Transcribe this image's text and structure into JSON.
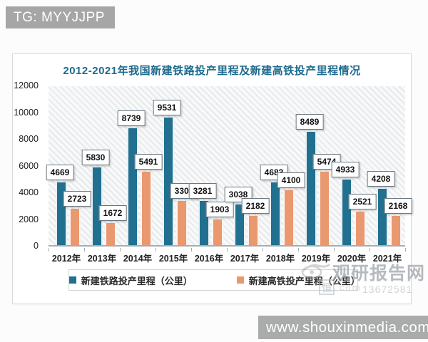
{
  "badge": {
    "label": "TG: MYYJJPP"
  },
  "chart_data": {
    "type": "bar",
    "title": "2012-2021年我国新建铁路投产里程及新建高铁投产里程情况",
    "categories": [
      "2012年",
      "2013年",
      "2014年",
      "2015年",
      "2016年",
      "2017年",
      "2018年",
      "2019年",
      "2020年",
      "2021年"
    ],
    "series": [
      {
        "name": "新建铁路投产里程（公里）",
        "color": "#21708f",
        "values": [
          4669,
          5830,
          8739,
          9531,
          3281,
          3038,
          4683,
          8489,
          4933,
          4208
        ]
      },
      {
        "name": "新建高铁投产里程（公里）",
        "color": "#e9986f",
        "values": [
          2723,
          1672,
          5491,
          3306,
          1903,
          2182,
          4100,
          5474,
          2521,
          2168
        ]
      }
    ],
    "xlabel": "",
    "ylabel": "",
    "ylim": [
      0,
      12000
    ],
    "y_ticks": [
      0,
      2000,
      4000,
      6000,
      8000,
      10000,
      12000
    ],
    "grid": false,
    "legend_position": "bottom",
    "plot_background": "diagonal-hatch"
  },
  "watermark": {
    "brand": "观研报告网",
    "seal": "恒",
    "fragment": "com",
    "number": "13672581"
  },
  "footer": {
    "url": "www.shouxinmedia.com"
  },
  "colors": {
    "rail_bar": "#21708f",
    "hsr_bar": "#e9986f",
    "title_text": "#1d6a8d",
    "badge_bg": "#a6a6a6",
    "footer_bg": "#a9acab"
  }
}
